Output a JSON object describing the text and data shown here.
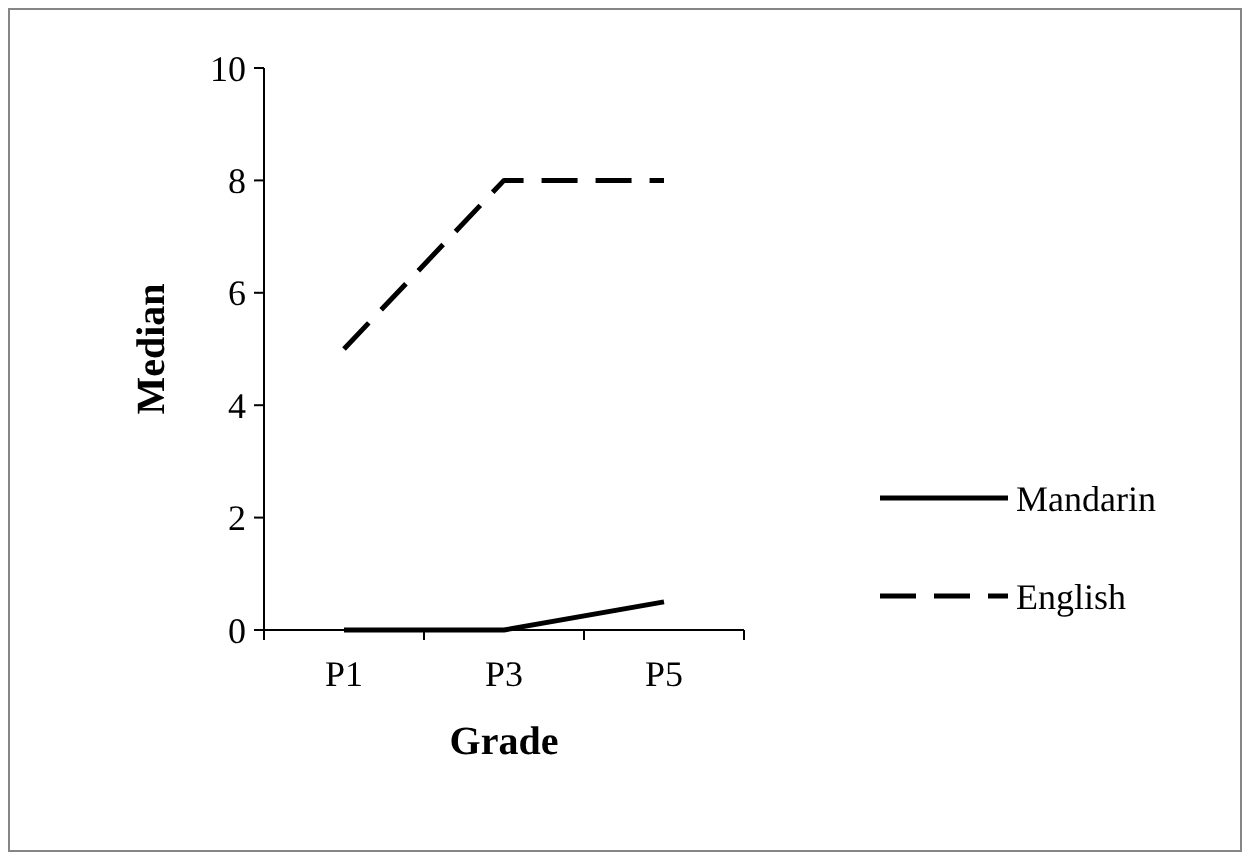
{
  "chart_data": {
    "type": "line",
    "xlabel": "Grade",
    "ylabel": "Median",
    "categories": [
      "P1",
      "P3",
      "P5"
    ],
    "series": [
      {
        "name": "Mandarin",
        "color": "#000000",
        "values": [
          0,
          0,
          0.5
        ],
        "line_style": "solid"
      },
      {
        "name": "English",
        "color": "#000000",
        "values": [
          5,
          8,
          8
        ],
        "line_style": "dashed"
      }
    ],
    "ylim": [
      0,
      10
    ],
    "yticks": [
      0,
      2,
      4,
      6,
      8,
      10
    ],
    "grid": false,
    "legend": "right",
    "marker": "none"
  }
}
